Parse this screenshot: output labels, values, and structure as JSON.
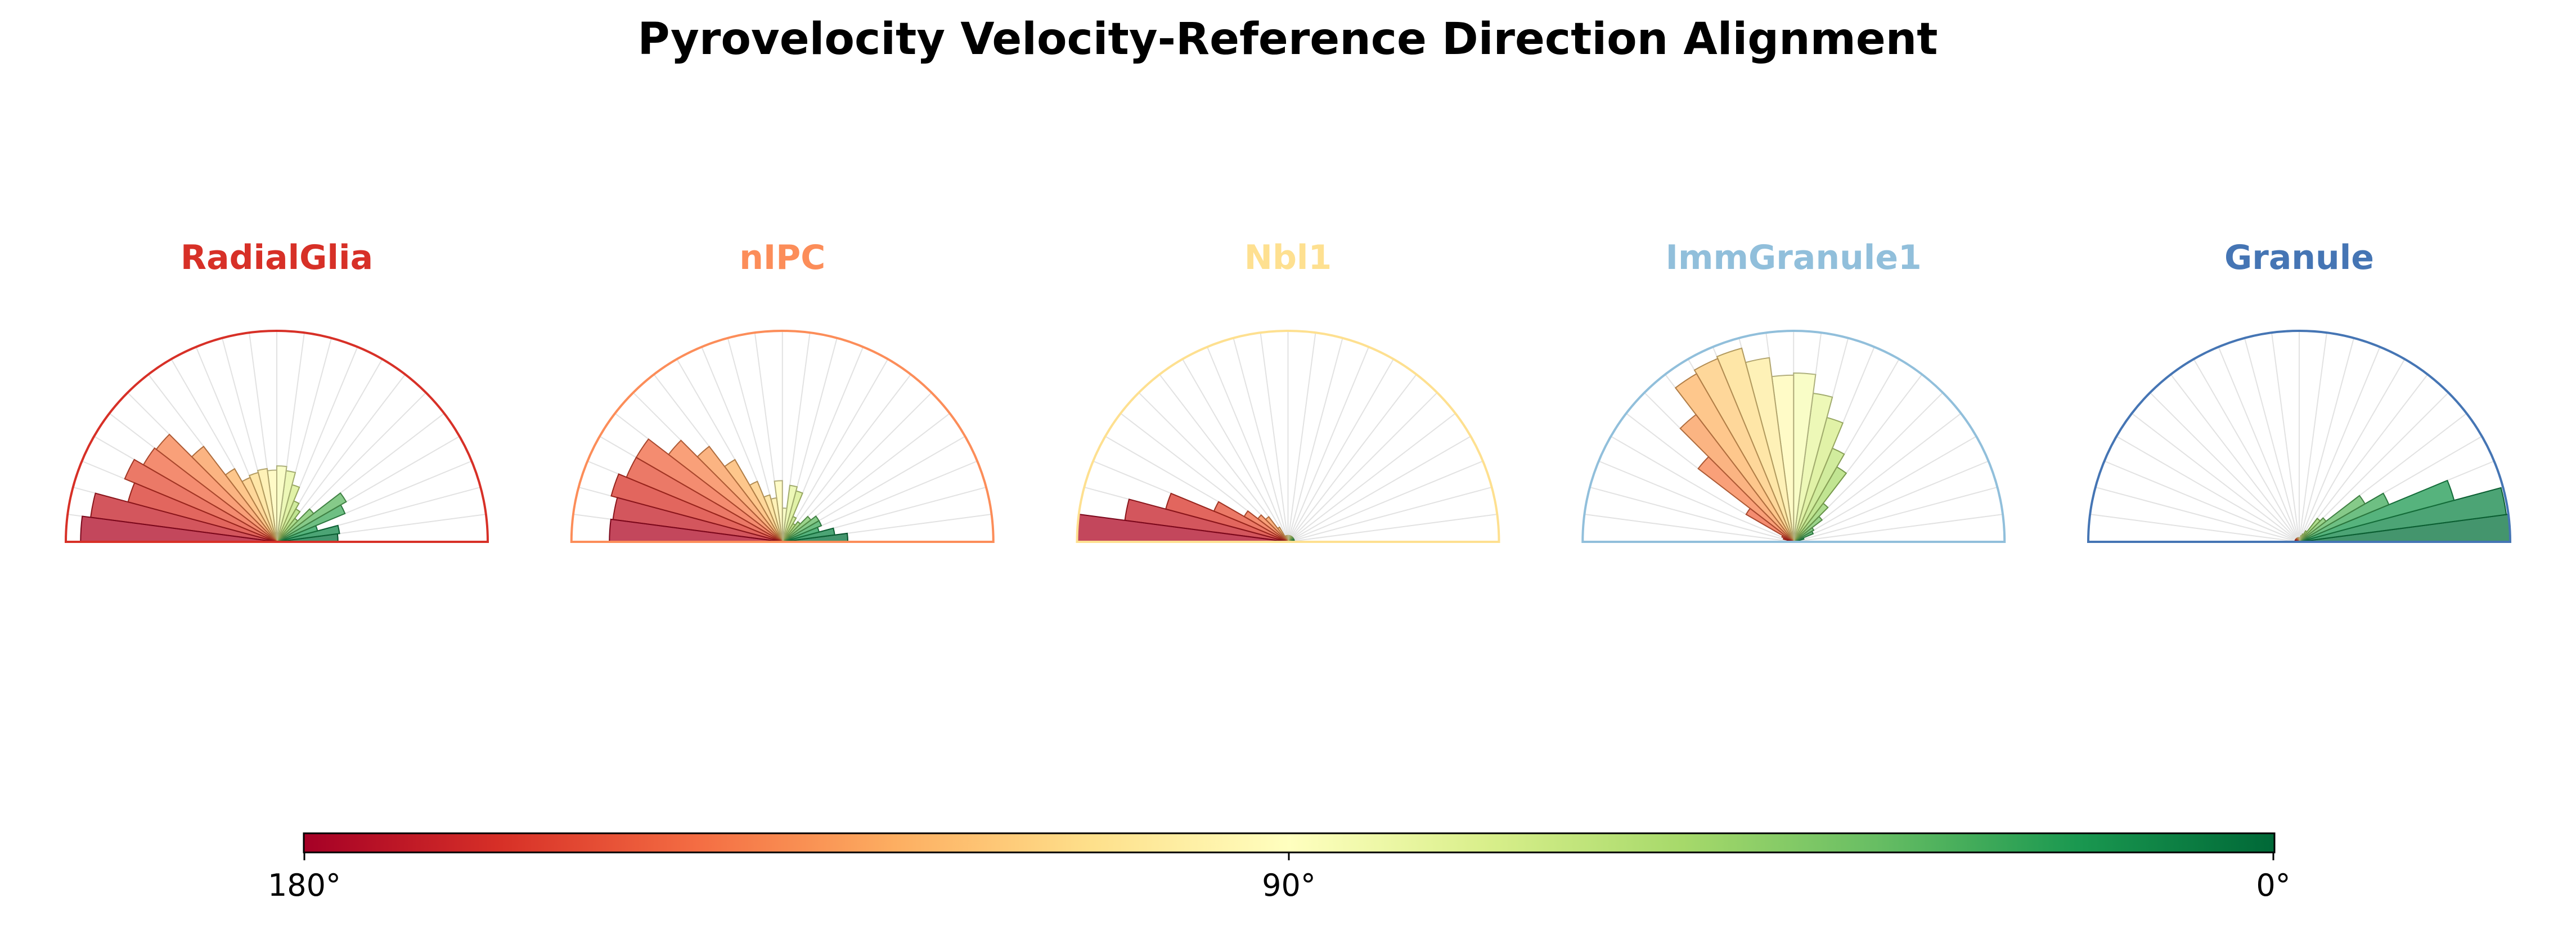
{
  "chart_data": {
    "type": "polar-histogram",
    "title": "Pyrovelocity Velocity-Reference Direction Alignment",
    "angle_range_deg": [
      0,
      180
    ],
    "bin_width_deg": 7.5,
    "bin_centers_deg": [
      3.75,
      11.25,
      18.75,
      26.25,
      33.75,
      41.25,
      48.75,
      56.25,
      63.75,
      71.25,
      78.75,
      86.25,
      93.75,
      101.25,
      108.75,
      116.25,
      123.75,
      131.25,
      138.75,
      146.25,
      153.75,
      161.25,
      168.75,
      176.25
    ],
    "radial_scale": "relative",
    "panels": [
      {
        "name": "RadialGlia",
        "color": "#d73027",
        "values": [
          0.29,
          0.3,
          0.2,
          0.35,
          0.38,
          0.22,
          0.14,
          0.18,
          0.21,
          0.28,
          0.34,
          0.36,
          0.34,
          0.35,
          0.34,
          0.33,
          0.4,
          0.57,
          0.72,
          0.73,
          0.78,
          0.73,
          0.89,
          0.93
        ]
      },
      {
        "name": "nIPC",
        "color": "#fc8d59",
        "values": [
          0.31,
          0.25,
          0.18,
          0.2,
          0.2,
          0.17,
          0.12,
          0.1,
          0.13,
          0.25,
          0.27,
          0.16,
          0.29,
          0.21,
          0.23,
          0.31,
          0.45,
          0.57,
          0.68,
          0.8,
          0.8,
          0.84,
          0.81,
          0.82
        ]
      },
      {
        "name": "Nbl1",
        "color": "#fee090",
        "values": [
          0.03,
          0.03,
          0.03,
          0.03,
          0.03,
          0.03,
          0.03,
          0.03,
          0.03,
          0.03,
          0.03,
          0.03,
          0.03,
          0.03,
          0.03,
          0.03,
          0.08,
          0.15,
          0.18,
          0.24,
          0.38,
          0.6,
          0.78,
          1.0
        ]
      },
      {
        "name": "ImmGranule1",
        "color": "#91bfdb",
        "values": [
          0.02,
          0.02,
          0.05,
          0.1,
          0.11,
          0.17,
          0.23,
          0.41,
          0.48,
          0.61,
          0.71,
          0.8,
          0.79,
          0.88,
          0.95,
          0.94,
          0.92,
          0.76,
          0.57,
          0.26,
          0.06,
          0.05,
          0.03,
          0.02
        ]
      },
      {
        "name": "Granule",
        "color": "#4575b4",
        "values": [
          1.0,
          0.99,
          0.76,
          0.46,
          0.36,
          0.16,
          0.14,
          0.06,
          0.04,
          0.03,
          0.02,
          0.02,
          0.02,
          0.02,
          0.02,
          0.02,
          0.02,
          0.02,
          0.02,
          0.02,
          0.02,
          0.02,
          0.02,
          0.02
        ]
      }
    ],
    "colormap": "RdYlGn",
    "colorbar": {
      "label_180": "180°",
      "label_90": "90°",
      "label_0": "0°",
      "stops": [
        "#a50026",
        "#d73027",
        "#f46d43",
        "#fdae61",
        "#fee08b",
        "#ffffbf",
        "#d9ef8b",
        "#a6d96a",
        "#66bd63",
        "#1a9850",
        "#006837"
      ]
    }
  }
}
